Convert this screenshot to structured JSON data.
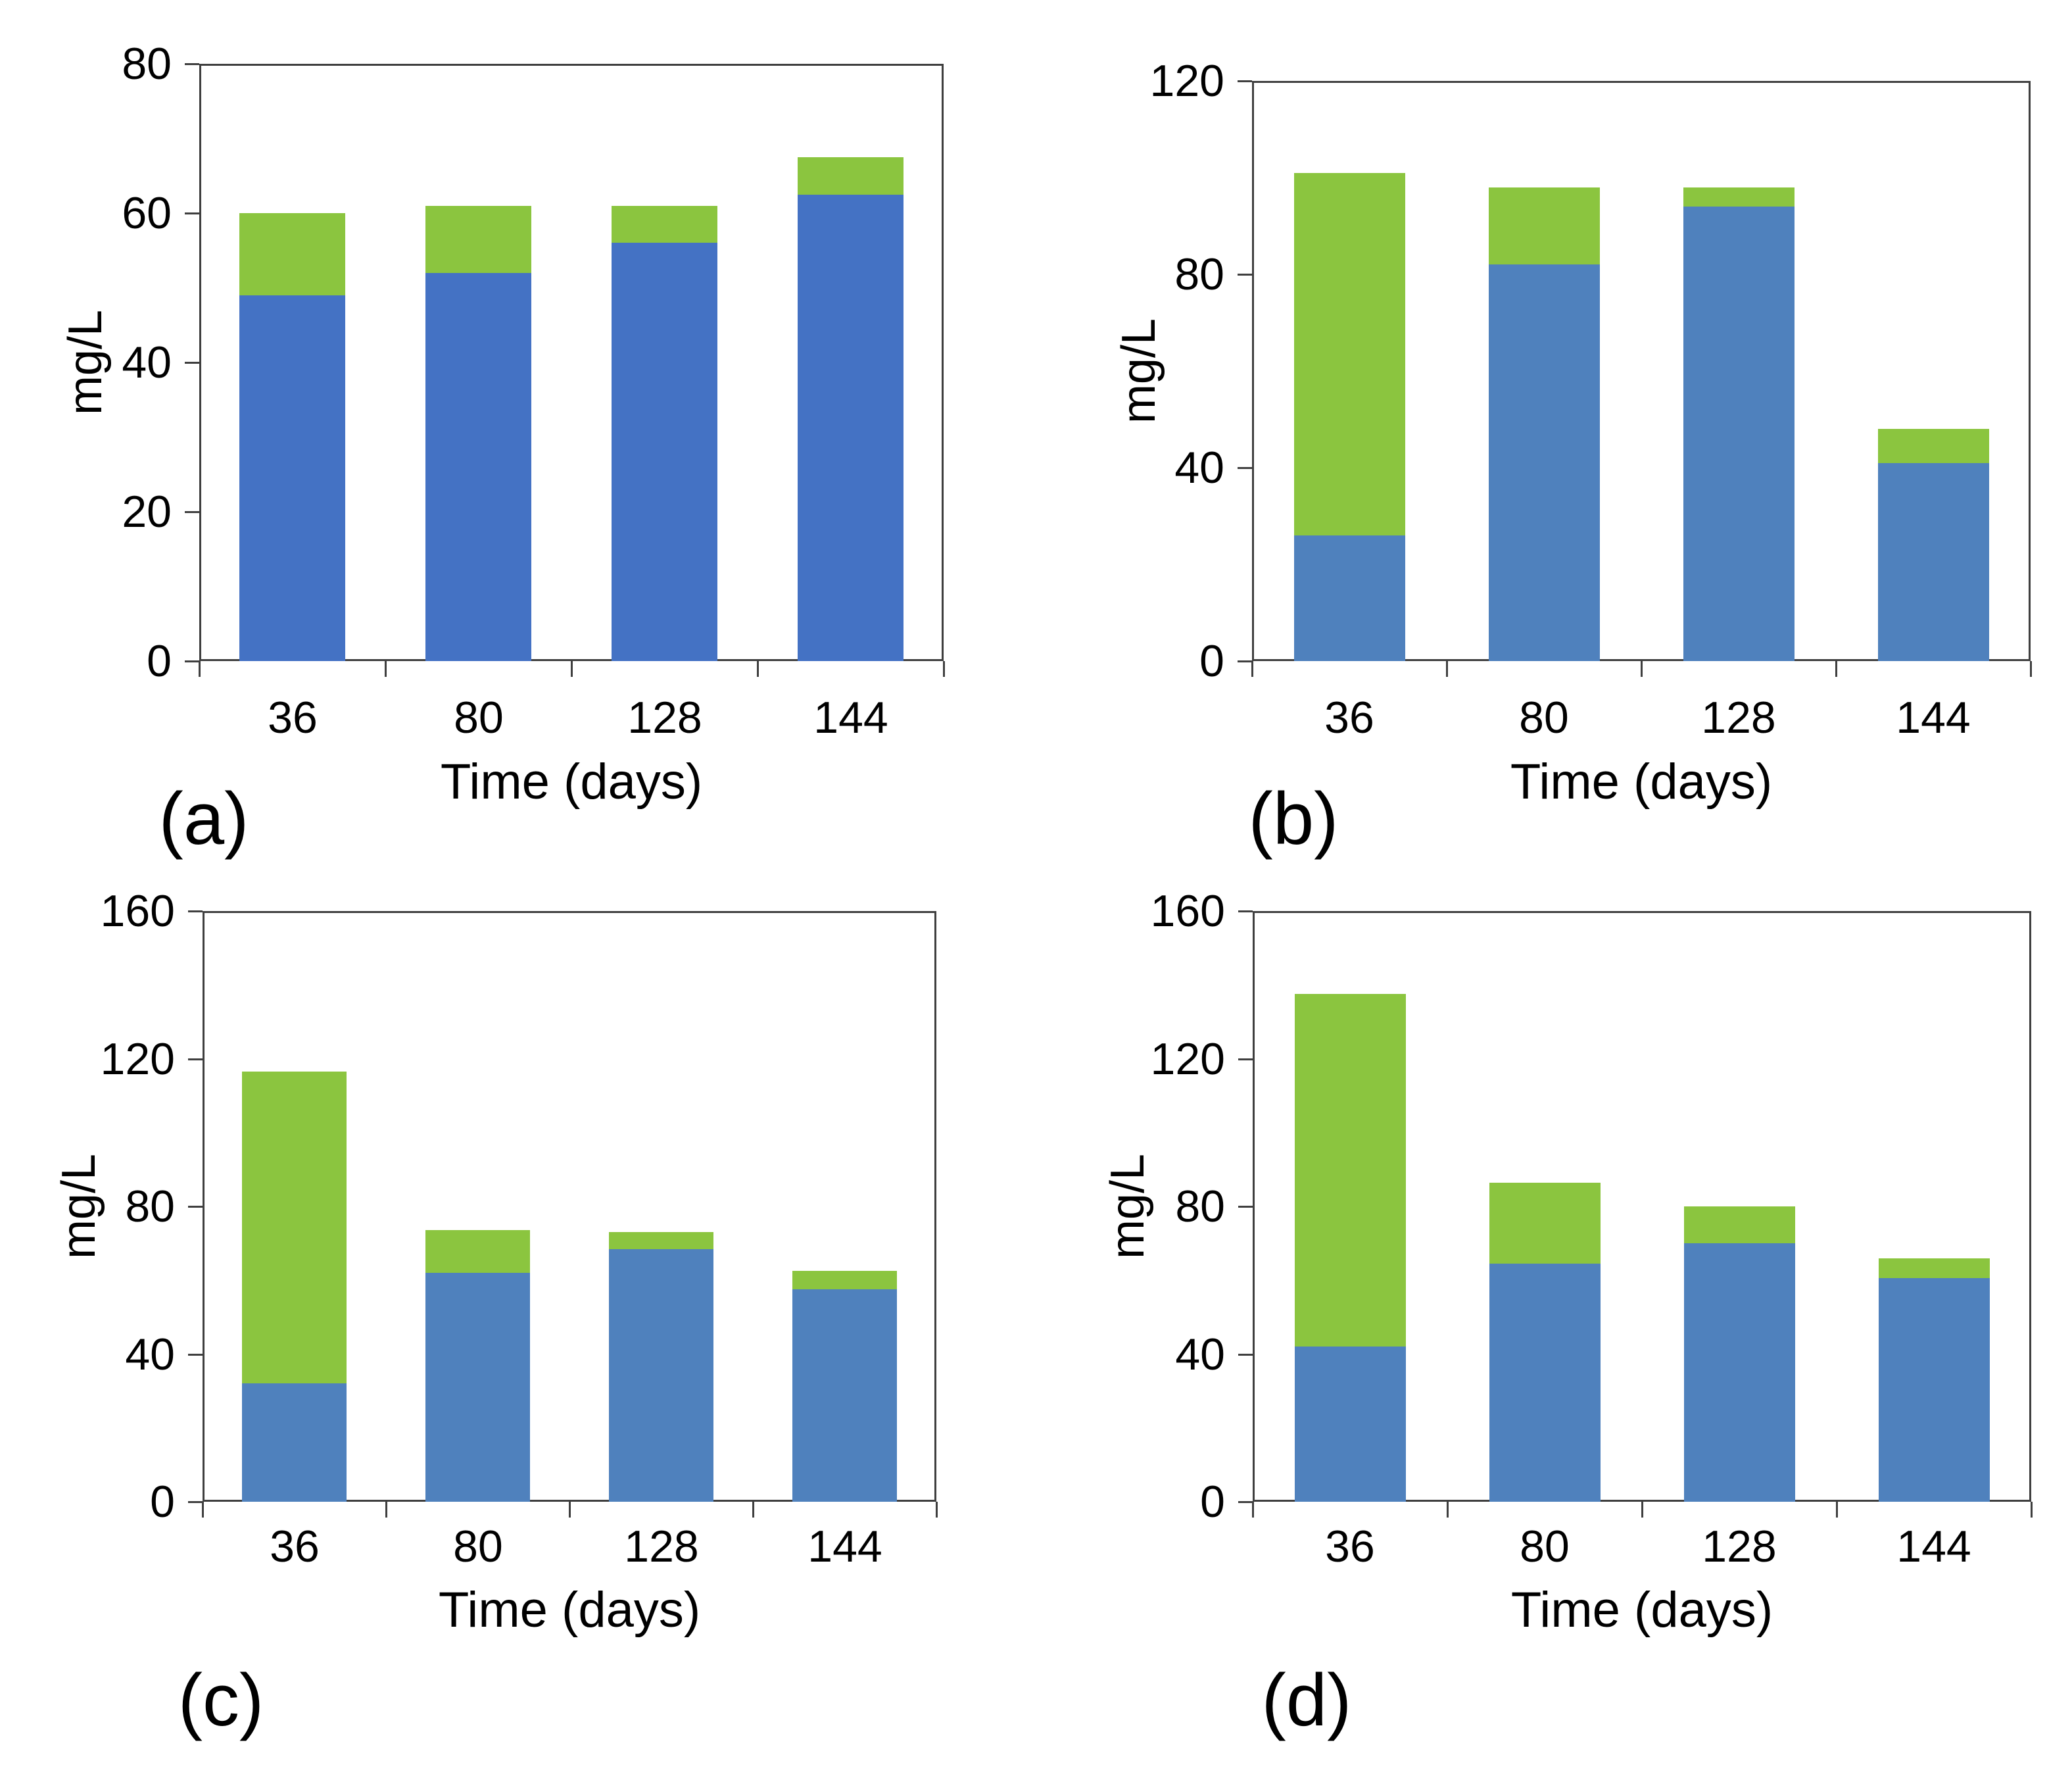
{
  "figure": {
    "background": "#ffffff",
    "axis_color": "#3f3f3f",
    "text_color": "#000000"
  },
  "chart_data": [
    {
      "type": "bar",
      "stacked": true,
      "panel_label": "(a)",
      "xlabel": "Time (days)",
      "ylabel": "mg/L",
      "categories": [
        "36",
        "80",
        "128",
        "144"
      ],
      "ylim": [
        0,
        80
      ],
      "yticks": [
        0,
        20,
        40,
        60,
        80
      ],
      "grid": false,
      "legend": "none",
      "series": [
        {
          "name": "blue segment",
          "color": "#4472C4",
          "values": [
            49,
            52,
            56,
            62.5
          ]
        },
        {
          "name": "green segment",
          "color": "#8BC53F",
          "values": [
            11,
            9,
            5,
            5
          ]
        }
      ],
      "totals": [
        60,
        61,
        61,
        67.5
      ]
    },
    {
      "type": "bar",
      "stacked": true,
      "panel_label": "(b)",
      "xlabel": "Time (days)",
      "ylabel": "mg/L",
      "categories": [
        "36",
        "80",
        "128",
        "144"
      ],
      "ylim": [
        0,
        120
      ],
      "yticks": [
        0,
        40,
        80,
        120
      ],
      "grid": false,
      "legend": "none",
      "series": [
        {
          "name": "blue segment",
          "color": "#4F81BD",
          "values": [
            26,
            82,
            94,
            41
          ]
        },
        {
          "name": "green segment",
          "color": "#8BC53F",
          "values": [
            75,
            16,
            4,
            7
          ]
        }
      ],
      "totals": [
        101,
        98,
        98,
        48
      ]
    },
    {
      "type": "bar",
      "stacked": true,
      "panel_label": "(c)",
      "xlabel": "Time (days)",
      "ylabel": "mg/L",
      "categories": [
        "36",
        "80",
        "128",
        "144"
      ],
      "ylim": [
        0,
        160
      ],
      "yticks": [
        0,
        40,
        80,
        120,
        160
      ],
      "grid": false,
      "legend": "none",
      "series": [
        {
          "name": "blue segment",
          "color": "#4F81BD",
          "values": [
            32,
            62,
            68.5,
            57.5
          ]
        },
        {
          "name": "green segment",
          "color": "#8BC53F",
          "values": [
            84.5,
            11.5,
            4.5,
            5
          ]
        }
      ],
      "totals": [
        116.5,
        73.5,
        73,
        62.5
      ]
    },
    {
      "type": "bar",
      "stacked": true,
      "panel_label": "(d)",
      "xlabel": "Time (days)",
      "ylabel": "mg/L",
      "categories": [
        "36",
        "80",
        "128",
        "144"
      ],
      "ylim": [
        0,
        160
      ],
      "yticks": [
        0,
        40,
        80,
        120,
        160
      ],
      "grid": false,
      "legend": "none",
      "series": [
        {
          "name": "blue segment",
          "color": "#4F81BD",
          "values": [
            42,
            64.5,
            70,
            60.5
          ]
        },
        {
          "name": "green segment",
          "color": "#8BC53F",
          "values": [
            95.5,
            22,
            10,
            5.5
          ]
        }
      ],
      "totals": [
        137.5,
        86.5,
        80,
        66
      ]
    }
  ]
}
